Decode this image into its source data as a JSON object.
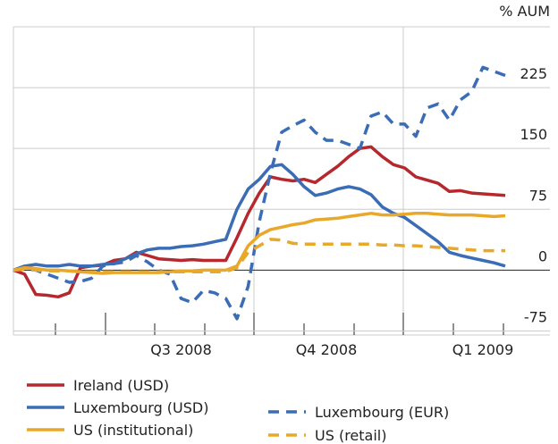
{
  "chart_data": {
    "type": "line",
    "y_label": "% AUM",
    "categories": [
      null,
      null,
      null,
      null,
      null,
      null,
      null,
      null,
      null,
      null,
      null,
      null,
      null,
      null,
      null,
      "Q3 2008",
      null,
      null,
      null,
      null,
      null,
      null,
      null,
      null,
      null,
      null,
      null,
      null,
      "Q4 2008",
      null,
      null,
      null,
      null,
      null,
      null,
      null,
      null,
      null,
      null,
      null,
      null,
      null,
      "Q1 2009",
      null,
      null
    ],
    "ylim": [
      -80,
      300
    ],
    "yticks": [
      -75,
      0,
      75,
      150,
      225
    ],
    "grid": true,
    "series": [
      {
        "name": "Ireland (USD)",
        "color": "#b5282e",
        "dashed": false,
        "values": [
          0,
          -5,
          -30,
          -31,
          -33,
          -28,
          3,
          5,
          6,
          12,
          14,
          22,
          18,
          14,
          13,
          12,
          13,
          12,
          12,
          12,
          40,
          70,
          95,
          115,
          112,
          110,
          112,
          108,
          118,
          128,
          140,
          150,
          152,
          140,
          130,
          126,
          115,
          111,
          107,
          97,
          98,
          95,
          94,
          93,
          92
        ]
      },
      {
        "name": "Luxembourg (USD)",
        "color": "#3a6db5",
        "dashed": false,
        "values": [
          0,
          5,
          7,
          5,
          5,
          7,
          5,
          5,
          7,
          8,
          14,
          20,
          25,
          27,
          27,
          29,
          30,
          32,
          35,
          38,
          75,
          100,
          112,
          128,
          130,
          118,
          103,
          92,
          95,
          100,
          103,
          100,
          93,
          78,
          70,
          65,
          55,
          45,
          35,
          22,
          18,
          15,
          12,
          9,
          5
        ]
      },
      {
        "name": "Luxembourg (EUR)",
        "color": "#3a6db5",
        "dashed": true,
        "values": [
          0,
          2,
          0,
          -5,
          -10,
          -15,
          -14,
          -10,
          5,
          8,
          10,
          18,
          10,
          0,
          -5,
          -35,
          -40,
          -25,
          -28,
          -35,
          -60,
          -20,
          60,
          120,
          170,
          178,
          185,
          170,
          160,
          160,
          155,
          150,
          190,
          195,
          180,
          180,
          165,
          200,
          205,
          185,
          210,
          220,
          250,
          245,
          240
        ]
      },
      {
        "name": "US (institutional)",
        "color": "#e8a82a",
        "dashed": false,
        "values": [
          0,
          3,
          2,
          0,
          0,
          -1,
          -2,
          -3,
          -4,
          -3,
          -3,
          -3,
          -3,
          -3,
          -2,
          -1,
          -1,
          0,
          0,
          0,
          5,
          30,
          43,
          50,
          53,
          56,
          58,
          62,
          63,
          64,
          66,
          68,
          70,
          68,
          68,
          69,
          70,
          70,
          69,
          68,
          68,
          68,
          67,
          66,
          67
        ]
      },
      {
        "name": "US (retail)",
        "color": "#e8a82a",
        "dashed": true,
        "values": [
          0,
          1,
          0,
          -1,
          -1,
          -1,
          -2,
          -2,
          -2,
          -2,
          -2,
          -2,
          -2,
          -2,
          -2,
          -2,
          -2,
          -2,
          -2,
          -2,
          3,
          22,
          30,
          38,
          37,
          33,
          32,
          32,
          32,
          32,
          32,
          32,
          32,
          31,
          31,
          30,
          30,
          29,
          28,
          27,
          26,
          25,
          24,
          24,
          24
        ]
      }
    ]
  }
}
